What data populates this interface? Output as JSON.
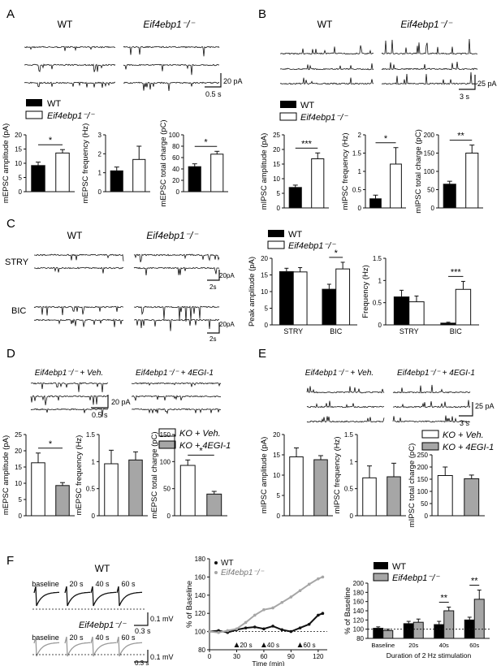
{
  "figure": {
    "panel_letters": [
      "A",
      "B",
      "C",
      "D",
      "E",
      "F"
    ],
    "colors": {
      "wt": "#000000",
      "ko_fill": "#ffffff",
      "gray": "#a6a6a6",
      "trace_gray": "#9a9a9a",
      "ink": "#111111"
    }
  },
  "A": {
    "trace_titles": [
      "WT",
      "Eif4ebp1⁻/⁻"
    ],
    "scale": [
      "20 pA",
      "0.5 s"
    ],
    "legend": [
      "WT",
      "Eif4ebp1⁻/⁻"
    ]
  },
  "B": {
    "trace_titles": [
      "WT",
      "Eif4ebp1⁻/⁻"
    ],
    "scale": [
      "25 pA",
      "3 s"
    ],
    "legend": [
      "WT",
      "Eif4ebp1⁻/⁻"
    ]
  },
  "C": {
    "trace_titles": [
      "WT",
      "Eif4ebp1⁻/⁻"
    ],
    "row_labels": [
      "STRY",
      "BIC"
    ],
    "scale": [
      "20pA",
      "2s"
    ],
    "legend": [
      "WT",
      "Eif4ebp1⁻/⁻"
    ]
  },
  "D": {
    "trace_titles": [
      "Eif4ebp1⁻/⁻ + Veh.",
      "Eif4ebp1⁻/⁻ + 4EGI-1"
    ],
    "scale": [
      "20 pA",
      "0.5 s"
    ],
    "legend": [
      "KO + Veh.",
      "KO + 4EGI-1"
    ]
  },
  "E": {
    "trace_titles": [
      "Eif4ebp1⁻/⁻ + Veh.",
      "Eif4ebp1⁻/⁻ + 4EGI-1"
    ],
    "scale": [
      "25 pA",
      "3 s"
    ],
    "legend": [
      "KO + Veh.",
      "KO + 4EGI-1"
    ]
  },
  "F": {
    "trace_group_titles": [
      "WT",
      "Eif4ebp1⁻/⁻"
    ],
    "trace_timepoints": [
      "baseline",
      "20 s",
      "40 s",
      "60 s"
    ],
    "scale": [
      "0.1 mV",
      "0.3 s"
    ],
    "legend": [
      "WT",
      "Eif4ebp1⁻/⁻"
    ]
  },
  "chart_data": [
    {
      "id": "A1",
      "type": "bar",
      "categories": [
        "WT",
        "Eif4ebp1⁻/⁻"
      ],
      "values": [
        9.2,
        13.6
      ],
      "errors": [
        1.2,
        1.2
      ],
      "ylabel": "mEPSC amplitude (pA)",
      "ylim": [
        0,
        20
      ],
      "yticks": [
        0,
        5,
        10,
        15,
        20
      ],
      "fills": [
        "black",
        "white"
      ],
      "sig": [
        {
          "text": "*",
          "from": 0,
          "to": 1
        }
      ]
    },
    {
      "id": "A2",
      "type": "bar",
      "categories": [
        "WT",
        "Eif4ebp1⁻/⁻"
      ],
      "values": [
        1.1,
        1.7
      ],
      "errors": [
        0.2,
        0.7
      ],
      "ylabel": "mEPSC frequency (Hz)",
      "ylim": [
        0,
        3
      ],
      "yticks": [
        0,
        1,
        2,
        3
      ],
      "fills": [
        "black",
        "white"
      ],
      "sig": []
    },
    {
      "id": "A3",
      "type": "bar",
      "categories": [
        "WT",
        "Eif4ebp1⁻/⁻"
      ],
      "values": [
        44,
        66
      ],
      "errors": [
        5,
        5
      ],
      "ylabel": "mEPSC total charge (pC)",
      "ylim": [
        0,
        100
      ],
      "yticks": [
        0,
        20,
        40,
        60,
        80,
        100
      ],
      "fills": [
        "black",
        "white"
      ],
      "sig": [
        {
          "text": "*",
          "from": 0,
          "to": 1
        }
      ]
    },
    {
      "id": "B1",
      "type": "bar",
      "categories": [
        "WT",
        "Eif4ebp1⁻/⁻"
      ],
      "values": [
        7,
        16.8
      ],
      "errors": [
        0.8,
        2.0
      ],
      "ylabel": "mIPSC amplitude (pA)",
      "ylim": [
        0,
        25
      ],
      "yticks": [
        0,
        5,
        10,
        15,
        20,
        25
      ],
      "fills": [
        "black",
        "white"
      ],
      "sig": [
        {
          "text": "***",
          "from": 0,
          "to": 1
        }
      ]
    },
    {
      "id": "B2",
      "type": "bar",
      "categories": [
        "WT",
        "Eif4ebp1⁻/⁻"
      ],
      "values": [
        0.25,
        1.2
      ],
      "errors": [
        0.1,
        0.45
      ],
      "ylabel": "mIPSC frequency (Hz)",
      "ylim": [
        0,
        2.0
      ],
      "yticks": [
        0,
        0.5,
        1.0,
        1.5,
        2.0
      ],
      "fills": [
        "black",
        "white"
      ],
      "sig": [
        {
          "text": "*",
          "from": 0,
          "to": 1
        }
      ]
    },
    {
      "id": "B3",
      "type": "bar",
      "categories": [
        "WT",
        "Eif4ebp1⁻/⁻"
      ],
      "values": [
        65,
        150
      ],
      "errors": [
        8,
        22
      ],
      "ylabel": "mIPSC total charge (pC)",
      "ylim": [
        0,
        200
      ],
      "yticks": [
        0,
        50,
        100,
        150,
        200
      ],
      "fills": [
        "black",
        "white"
      ],
      "sig": [
        {
          "text": "**",
          "from": 0,
          "to": 1
        }
      ]
    },
    {
      "id": "C1",
      "type": "bar",
      "categories": [
        "STRY",
        "BIC"
      ],
      "series": [
        {
          "name": "WT",
          "values": [
            16,
            10.7
          ],
          "errors": [
            1,
            1.5
          ]
        },
        {
          "name": "Eif4ebp1⁻/⁻",
          "values": [
            15.9,
            16.8
          ],
          "errors": [
            1.3,
            2
          ]
        }
      ],
      "ylabel": "Peak amplitude (pA)",
      "ylim": [
        0,
        20
      ],
      "yticks": [
        0,
        5,
        10,
        15,
        20
      ],
      "fills": [
        "black",
        "white"
      ],
      "sig": [
        {
          "text": "*",
          "group": 1
        }
      ]
    },
    {
      "id": "C2",
      "type": "bar",
      "categories": [
        "STRY",
        "BIC"
      ],
      "series": [
        {
          "name": "WT",
          "values": [
            0.63,
            0.04
          ],
          "errors": [
            0.15,
            0.02
          ]
        },
        {
          "name": "Eif4ebp1⁻/⁻",
          "values": [
            0.52,
            0.8
          ],
          "errors": [
            0.13,
            0.18
          ]
        }
      ],
      "ylabel": "Frequency (Hz)",
      "ylim": [
        0,
        1.5
      ],
      "yticks": [
        0,
        0.5,
        1.0,
        1.5
      ],
      "fills": [
        "black",
        "white"
      ],
      "sig": [
        {
          "text": "***",
          "group": 1
        }
      ]
    },
    {
      "id": "D1",
      "type": "bar",
      "categories": [
        "KO + Veh.",
        "KO + 4EGI-1"
      ],
      "values": [
        16.3,
        9.3
      ],
      "errors": [
        3,
        0.9
      ],
      "ylabel": "mEPSC amplitude (pA)",
      "ylim": [
        0,
        25
      ],
      "yticks": [
        0,
        5,
        10,
        15,
        20,
        25
      ],
      "fills": [
        "white",
        "gray"
      ],
      "sig": [
        {
          "text": "*",
          "from": 0,
          "to": 1
        }
      ]
    },
    {
      "id": "D2",
      "type": "bar",
      "categories": [
        "KO + Veh.",
        "KO + 4EGI-1"
      ],
      "values": [
        0.96,
        1.03
      ],
      "errors": [
        0.25,
        0.15
      ],
      "ylabel": "mEPSC frequency (Hz)",
      "ylim": [
        0,
        1.5
      ],
      "yticks": [
        0,
        0.5,
        1.0,
        1.5
      ],
      "fills": [
        "white",
        "gray"
      ],
      "sig": []
    },
    {
      "id": "D3",
      "type": "bar",
      "categories": [
        "KO + Veh.",
        "KO + 4EGI-1"
      ],
      "values": [
        93,
        40
      ],
      "errors": [
        10,
        5
      ],
      "ylabel": "mEPSC total charge (pC)",
      "ylim": [
        0,
        150
      ],
      "yticks": [
        0,
        50,
        100,
        150
      ],
      "fills": [
        "white",
        "gray"
      ],
      "sig": [
        {
          "text": "*",
          "from": 0,
          "to": 1
        }
      ]
    },
    {
      "id": "E1",
      "type": "bar",
      "categories": [
        "KO + Veh.",
        "KO + 4EGI-1"
      ],
      "values": [
        14.5,
        13.8
      ],
      "errors": [
        2.2,
        1
      ],
      "ylabel": "mIPSC amplitude (pA)",
      "ylim": [
        0,
        20
      ],
      "yticks": [
        0,
        5,
        10,
        15,
        20
      ],
      "fills": [
        "white",
        "gray"
      ],
      "sig": []
    },
    {
      "id": "E2",
      "type": "bar",
      "categories": [
        "KO + Veh.",
        "KO + 4EGI-1"
      ],
      "values": [
        0.7,
        0.72
      ],
      "errors": [
        0.22,
        0.25
      ],
      "ylabel": "mIPSC frequency (Hz)",
      "ylim": [
        0,
        1.5
      ],
      "yticks": [
        0,
        0.5,
        1.0,
        1.5
      ],
      "fills": [
        "white",
        "gray"
      ],
      "sig": []
    },
    {
      "id": "E3",
      "type": "bar",
      "categories": [
        "KO + Veh.",
        "KO + 4EGI-1"
      ],
      "values": [
        165,
        152
      ],
      "errors": [
        35,
        15
      ],
      "ylabel": "mIPSC total charge (pC)",
      "ylim": [
        0,
        250
      ],
      "yticks": [
        0,
        50,
        100,
        150,
        200,
        250
      ],
      "fills": [
        "white",
        "gray"
      ],
      "sig": []
    },
    {
      "id": "F1",
      "type": "line",
      "series": [
        {
          "name": "WT",
          "x": [
            0,
            10,
            20,
            30,
            40,
            50,
            60,
            70,
            80,
            90,
            100,
            110,
            120,
            125
          ],
          "y": [
            100,
            101,
            99,
            102,
            104,
            105,
            103,
            106,
            102,
            100,
            104,
            108,
            118,
            120
          ]
        },
        {
          "name": "Eif4ebp1⁻/⁻",
          "x": [
            0,
            10,
            20,
            30,
            40,
            50,
            60,
            70,
            80,
            90,
            100,
            110,
            120,
            125
          ],
          "y": [
            100,
            99,
            101,
            103,
            110,
            118,
            124,
            126,
            132,
            138,
            145,
            152,
            158,
            160
          ]
        }
      ],
      "markers": [
        "20 s",
        "40 s",
        "60 s"
      ],
      "marker_x": [
        30,
        60,
        100
      ],
      "xlabel": "Time (min)",
      "ylabel": "% of Baseline",
      "xlim": [
        0,
        130
      ],
      "xticks": [
        0,
        30,
        60,
        90,
        120
      ],
      "ylim": [
        80,
        180
      ],
      "yticks": [
        80,
        100,
        120,
        140,
        160,
        180
      ]
    },
    {
      "id": "F2",
      "type": "bar",
      "categories": [
        "Baseline",
        "20s",
        "40s",
        "60s"
      ],
      "series": [
        {
          "name": "WT",
          "values": [
            102,
            112,
            110,
            120
          ],
          "errors": [
            3,
            5,
            7,
            6
          ]
        },
        {
          "name": "Eif4ebp1⁻/⁻",
          "values": [
            97,
            115,
            140,
            165
          ],
          "errors": [
            3,
            7,
            8,
            20
          ]
        }
      ],
      "ylabel": "% of Baseline",
      "xlabel": "Duration of 2 Hz stimulation",
      "ylim": [
        80,
        200
      ],
      "yticks": [
        80,
        100,
        120,
        140,
        160,
        180,
        200
      ],
      "fills": [
        "black",
        "gray"
      ],
      "sig": [
        {
          "text": "**",
          "group": 2
        },
        {
          "text": "**",
          "group": 3
        }
      ]
    }
  ]
}
